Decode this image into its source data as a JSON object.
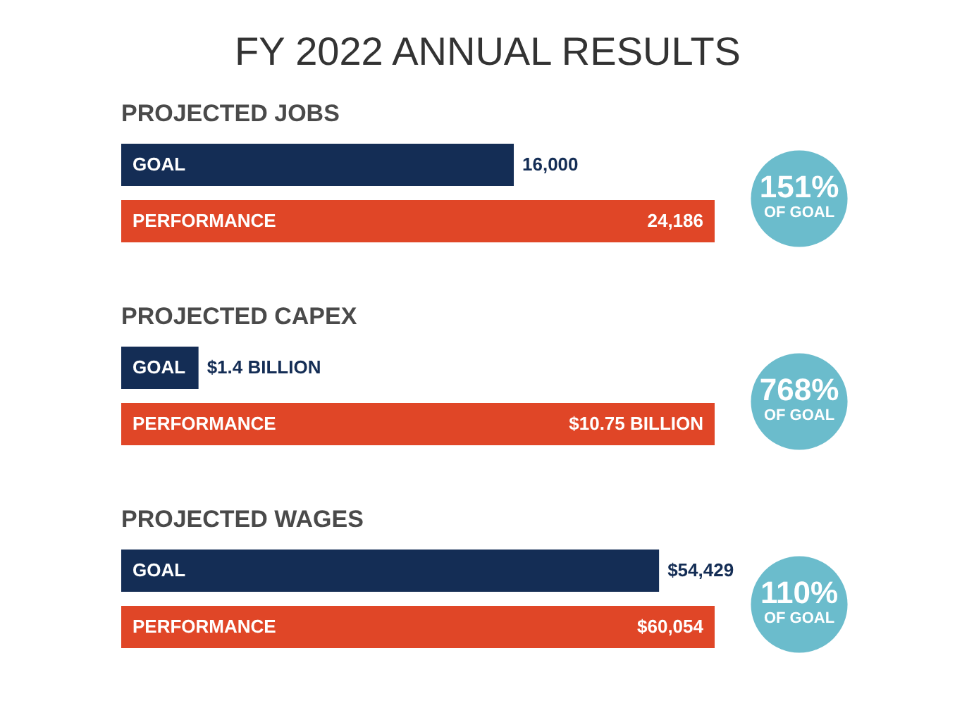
{
  "chart_data": [
    {
      "type": "bar",
      "orientation": "horizontal",
      "title": "FY 2022 ANNUAL RESULTS",
      "subtitle": "PROJECTED JOBS",
      "categories": [
        "GOAL",
        "PERFORMANCE"
      ],
      "values": [
        16000,
        24186
      ],
      "colors": [
        "#142d55",
        "#e04627"
      ],
      "value_labels": [
        "16,000",
        "24,186"
      ],
      "annotations": [
        "151%",
        "OF GOAL"
      ]
    },
    {
      "type": "bar",
      "orientation": "horizontal",
      "subtitle": "PROJECTED CAPEX",
      "categories": [
        "GOAL",
        "PERFORMANCE"
      ],
      "values": [
        1.4,
        10.75
      ],
      "colors": [
        "#142d55",
        "#e04627"
      ],
      "value_labels": [
        "$1.4 BILLION",
        "$10.75 BILLION"
      ],
      "annotations": [
        "768%",
        "OF GOAL"
      ]
    },
    {
      "type": "bar",
      "orientation": "horizontal",
      "subtitle": "PROJECTED WAGES",
      "categories": [
        "GOAL",
        "PERFORMANCE"
      ],
      "values": [
        54429,
        60054
      ],
      "colors": [
        "#142d55",
        "#e04627"
      ],
      "value_labels": [
        "$54,429",
        "$60,054"
      ],
      "annotations": [
        "110%",
        "OF GOAL"
      ]
    }
  ]
}
